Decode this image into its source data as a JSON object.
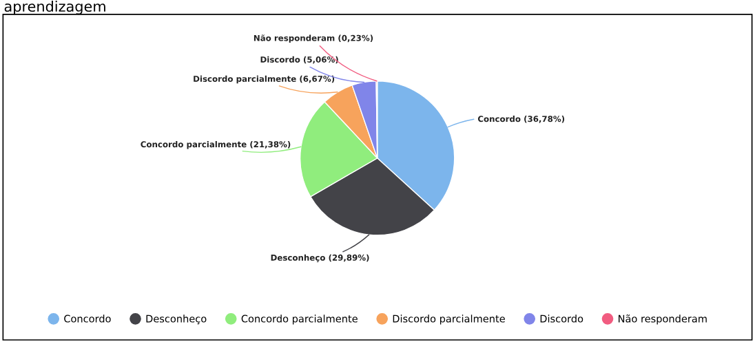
{
  "chart_data": {
    "type": "pie",
    "title": "aprendizagem",
    "categories": [
      "Concordo",
      "Desconheço",
      "Concordo parcialmente",
      "Discordo parcialmente",
      "Discordo",
      "Não responderam"
    ],
    "values": [
      36.78,
      29.89,
      21.38,
      6.67,
      5.06,
      0.23
    ],
    "value_labels": [
      "(36,78%)",
      "(29,89%)",
      "(21,38%)",
      "(6,67%)",
      "(5,06%)",
      "(0,23%)"
    ],
    "colors": [
      "#7cb5ec",
      "#434348",
      "#90ed7d",
      "#f7a35c",
      "#8085e9",
      "#f15c80"
    ],
    "legend": "bottom"
  }
}
